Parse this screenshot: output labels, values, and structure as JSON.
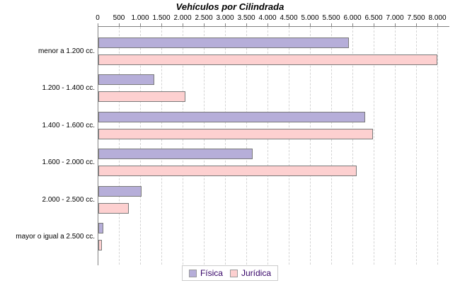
{
  "title": "Vehículos por Cilindrada",
  "colors": {
    "fisica_fill": "#b6aed9",
    "juridica_fill": "#fdd0d0",
    "bar_border": "#7a7a7a",
    "axis_line": "#808080",
    "gridline": "#d4d4d4",
    "legend_text": "#330066",
    "background": "#ffffff"
  },
  "chart_data": {
    "type": "bar",
    "orientation": "horizontal",
    "title": "Vehículos por Cilindrada",
    "categories": [
      "menor a 1.200 cc.",
      "1.200 - 1.400 cc.",
      "1.400 - 1.600 cc.",
      "1.600 - 2.000 cc.",
      "2.000 - 2.500 cc.",
      "mayor o igual a 2.500 cc."
    ],
    "series": [
      {
        "name": "Física",
        "color": "#b6aed9",
        "values": [
          5900,
          1320,
          6290,
          3630,
          1020,
          120
        ]
      },
      {
        "name": "Jurídica",
        "color": "#fdd0d0",
        "values": [
          7990,
          2050,
          6470,
          6080,
          710,
          80
        ]
      }
    ],
    "x_axis": {
      "position": "top",
      "min": 0,
      "max": 8250,
      "tick_step": 500,
      "tick_labels": [
        "0",
        "500",
        "1.000",
        "1.500",
        "2.000",
        "2.500",
        "3.000",
        "3.500",
        "4.000",
        "4.500",
        "5.000",
        "5.500",
        "6.000",
        "6.500",
        "7.000",
        "7.500",
        "8.000"
      ]
    },
    "grid": "vertical-dashed",
    "legend_position": "bottom-center"
  }
}
